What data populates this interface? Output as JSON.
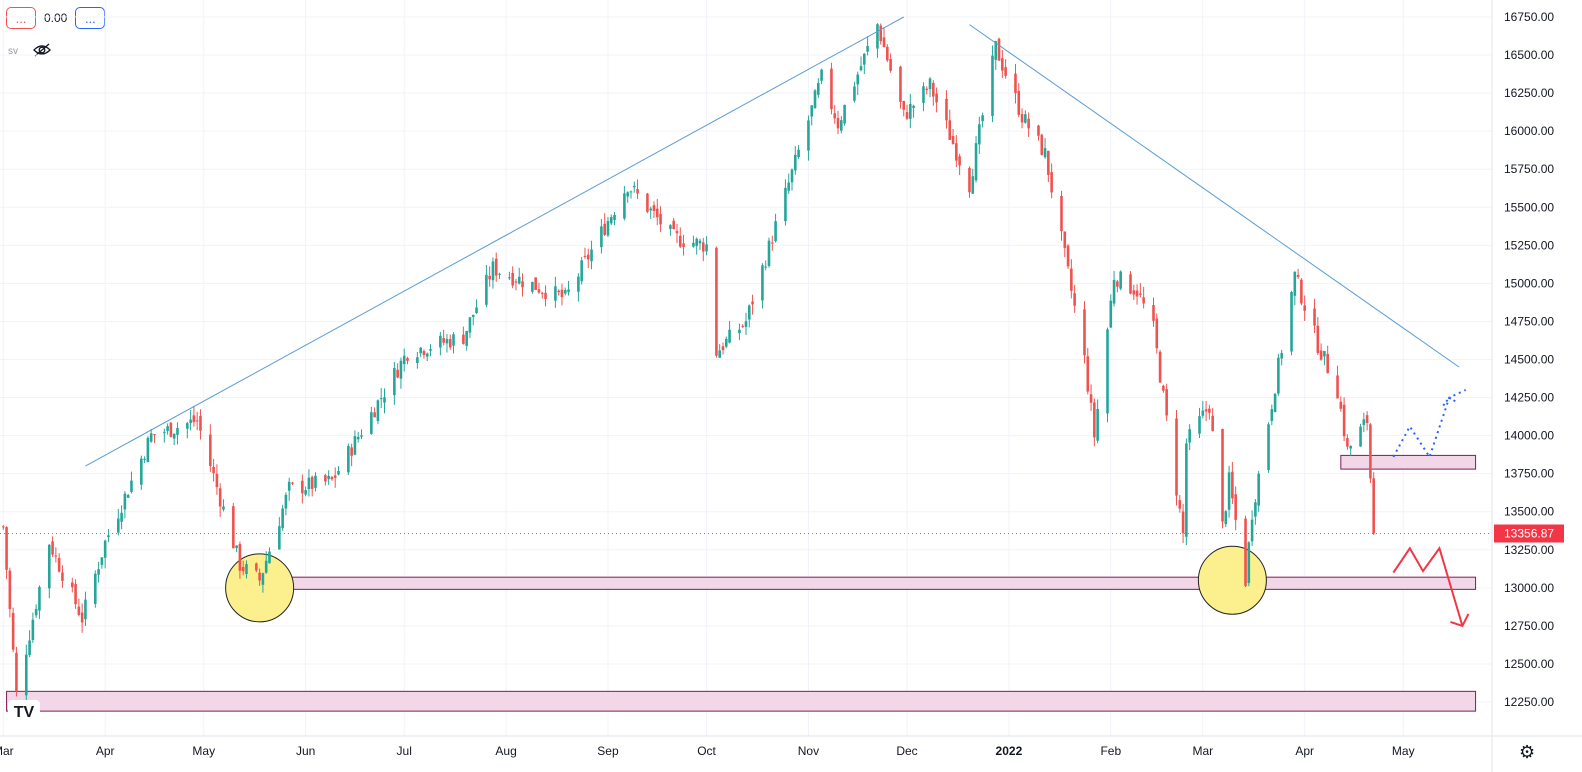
{
  "legend": {
    "btn1_label": "...",
    "value": "0.00",
    "btn2_label": "...",
    "indicator_label": "sv",
    "eye_icon": "eye-off-icon"
  },
  "logo_text": "TV",
  "settings_icon": "gear-icon",
  "colors": {
    "up": "#26a69a",
    "down": "#ef5350",
    "trendline": "#5b9bd5",
    "zone_fill": "#f1d7e7",
    "zone_stroke": "#7b1f57",
    "circle_fill": "#fbef8e",
    "grid": "#f0f3fa"
  },
  "chart_data": {
    "type": "candlestick",
    "y_axis": {
      "ticks": [
        12250,
        12500,
        12750,
        13000,
        13250,
        13500,
        13750,
        14000,
        14250,
        14500,
        14750,
        15000,
        15250,
        15500,
        15750,
        16000,
        16250,
        16500,
        16750
      ],
      "tick_labels": [
        "12250.00",
        "12500.00",
        "12750.00",
        "13000.00",
        "13250.00",
        "13500.00",
        "13750.00",
        "14000.00",
        "14250.00",
        "14500.00",
        "14750.00",
        "15000.00",
        "15250.00",
        "15500.00",
        "15750.00",
        "16000.00",
        "16250.00",
        "16500.00",
        "16750.00"
      ]
    },
    "x_axis": {
      "labels": [
        "Mar",
        "Apr",
        "May",
        "Jun",
        "Jul",
        "Aug",
        "Sep",
        "Oct",
        "Nov",
        "Dec",
        "2022",
        "Feb",
        "Mar",
        "Apr",
        "May"
      ]
    },
    "last_price": 13356.87,
    "last_price_label": "13356.87",
    "swings": [
      [
        "2021-03-01",
        13400
      ],
      [
        "2021-03-05",
        12300
      ],
      [
        "2021-03-15",
        13300
      ],
      [
        "2021-03-25",
        12800
      ],
      [
        "2021-04-01",
        13300
      ],
      [
        "2021-04-15",
        14000
      ],
      [
        "2021-04-29",
        14100
      ],
      [
        "2021-05-12",
        13150
      ],
      [
        "2021-05-18",
        13050
      ],
      [
        "2021-05-27",
        13650
      ],
      [
        "2021-06-09",
        13700
      ],
      [
        "2021-07-02",
        14550
      ],
      [
        "2021-07-19",
        14650
      ],
      [
        "2021-07-28",
        15100
      ],
      [
        "2021-08-19",
        14900
      ],
      [
        "2021-09-07",
        15650
      ],
      [
        "2021-09-21",
        15300
      ],
      [
        "2021-10-01",
        15250
      ],
      [
        "2021-10-04",
        14550
      ],
      [
        "2021-10-13",
        14750
      ],
      [
        "2021-11-05",
        16350
      ],
      [
        "2021-11-10",
        16050
      ],
      [
        "2021-11-22",
        16700
      ],
      [
        "2021-11-30",
        16100
      ],
      [
        "2021-12-08",
        16300
      ],
      [
        "2021-12-20",
        15650
      ],
      [
        "2021-12-28",
        16550
      ],
      [
        "2022-01-05",
        16100
      ],
      [
        "2022-01-12",
        15850
      ],
      [
        "2022-01-24",
        14500
      ],
      [
        "2022-01-27",
        14000
      ],
      [
        "2022-02-02",
        15050
      ],
      [
        "2022-02-09",
        14950
      ],
      [
        "2022-02-14",
        14700
      ],
      [
        "2022-02-23",
        13350
      ],
      [
        "2022-02-24",
        13950
      ],
      [
        "2022-03-03",
        14200
      ],
      [
        "2022-03-07",
        13400
      ],
      [
        "2022-03-09",
        13700
      ],
      [
        "2022-03-14",
        13050
      ],
      [
        "2022-03-16",
        13500
      ],
      [
        "2022-03-29",
        15050
      ],
      [
        "2022-04-05",
        14600
      ],
      [
        "2022-04-11",
        14300
      ],
      [
        "2022-04-14",
        13900
      ],
      [
        "2022-04-20",
        14100
      ],
      [
        "2022-04-22",
        13357
      ]
    ],
    "annotations": {
      "rising_trendline": [
        [
          "2021-03-26",
          13800
        ],
        [
          "2021-11-30",
          16750
        ]
      ],
      "falling_trendline": [
        [
          "2021-12-20",
          16700
        ],
        [
          "2022-05-18",
          14450
        ]
      ],
      "zones": [
        {
          "from": "2021-05-14",
          "to": "2022-05-23",
          "low": 12990,
          "high": 13070
        },
        {
          "from": "2021-03-02",
          "to": "2022-05-23",
          "low": 12190,
          "high": 12320
        },
        {
          "from": "2022-04-12",
          "to": "2022-05-23",
          "low": 13780,
          "high": 13870
        }
      ],
      "circles": [
        {
          "date": "2021-05-18",
          "price": 13000
        },
        {
          "date": "2022-03-10",
          "price": 13050
        }
      ],
      "bearish_path": [
        [
          "2022-04-28",
          13100
        ],
        [
          "2022-05-03",
          13260
        ],
        [
          "2022-05-07",
          13110
        ],
        [
          "2022-05-12",
          13260
        ],
        [
          "2022-05-19",
          12750
        ]
      ],
      "bullish_path": [
        [
          "2022-04-28",
          13860
        ],
        [
          "2022-05-03",
          14060
        ],
        [
          "2022-05-09",
          13860
        ],
        [
          "2022-05-15",
          14250
        ],
        [
          "2022-05-20",
          14300
        ]
      ]
    }
  }
}
